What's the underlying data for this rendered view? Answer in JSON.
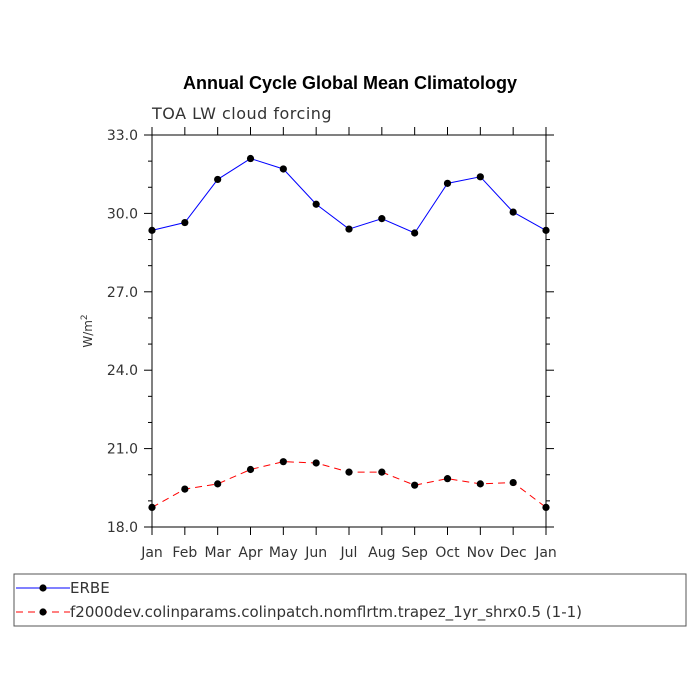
{
  "chart_data": {
    "type": "line",
    "title": "Annual Cycle Global Mean Climatology",
    "subtitle": "TOA LW cloud forcing",
    "xlabel": "",
    "ylabel": "W/m",
    "ylabel_superscript": "2",
    "categories": [
      "Jan",
      "Feb",
      "Mar",
      "Apr",
      "May",
      "Jun",
      "Jul",
      "Aug",
      "Sep",
      "Oct",
      "Nov",
      "Dec",
      "Jan"
    ],
    "ylim": [
      18.0,
      33.0
    ],
    "yticks": [
      18.0,
      21.0,
      24.0,
      27.0,
      30.0,
      33.0
    ],
    "ytick_labels": [
      "18.0",
      "21.0",
      "24.0",
      "27.0",
      "30.0",
      "33.0"
    ],
    "grid": false,
    "legend_position": "bottom",
    "series": [
      {
        "name": "ERBE",
        "color": "#0000ff",
        "dash": "solid",
        "values": [
          29.35,
          29.65,
          31.3,
          32.1,
          31.7,
          30.35,
          29.4,
          29.8,
          29.25,
          31.15,
          31.4,
          30.05,
          29.35
        ]
      },
      {
        "name": "f2000dev.colinparams.colinpatch.nomflrtm.trapez_1yr_shrx0.5 (1-1)",
        "color": "#ff0000",
        "dash": "dashed",
        "values": [
          18.75,
          19.45,
          19.65,
          20.2,
          20.5,
          20.45,
          20.1,
          20.1,
          19.6,
          19.85,
          19.65,
          19.7,
          18.75
        ]
      }
    ]
  }
}
